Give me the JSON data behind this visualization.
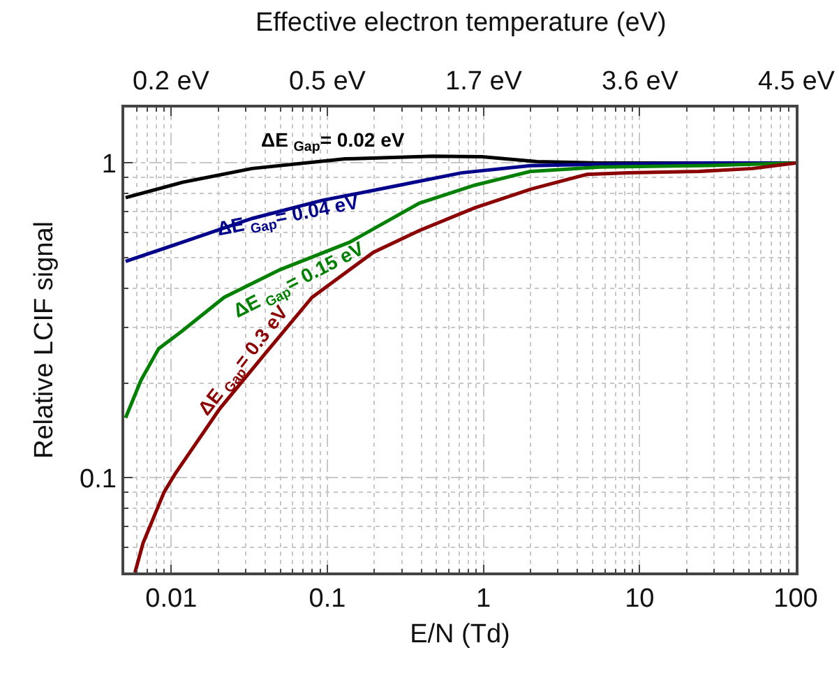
{
  "chart_data": {
    "type": "line",
    "xlabel": "E/N (Td)",
    "ylabel": "Relative LCIF signal",
    "x2label": "Effective electron temperature (eV)",
    "log": "xy",
    "xlim": [
      0.005,
      100
    ],
    "xticks": [
      0.01,
      0.1,
      1,
      10,
      100
    ],
    "ylim": [
      0.05,
      1.5
    ],
    "yticks": [
      0.1,
      1
    ],
    "grid": true,
    "line_style": "solid",
    "marker": "none",
    "series": [
      {
        "color": "#000000",
        "x": [
          0.0051,
          0.0118,
          0.0329,
          0.13,
          0.476,
          0.98,
          2.2,
          5.6,
          24,
          100
        ],
        "values": [
          0.776,
          0.868,
          0.96,
          1.03,
          1.05,
          1.046,
          1.01,
          1.0,
          1.0,
          1.0
        ]
      },
      {
        "color": "#00008b",
        "x": [
          0.0051,
          0.0118,
          0.0329,
          0.092,
          0.258,
          0.72,
          2.0,
          5.6,
          24,
          100
        ],
        "values": [
          0.487,
          0.56,
          0.666,
          0.76,
          0.84,
          0.93,
          0.98,
          0.99,
          1.0,
          1.0
        ]
      },
      {
        "color": "#008000",
        "x": [
          0.0051,
          0.0064,
          0.0083,
          0.0118,
          0.0218,
          0.0497,
          0.139,
          0.388,
          0.88,
          2.0,
          5.6,
          24,
          100
        ],
        "values": [
          0.155,
          0.204,
          0.257,
          0.293,
          0.374,
          0.458,
          0.56,
          0.745,
          0.85,
          0.94,
          0.97,
          0.98,
          1.0
        ]
      },
      {
        "color": "#8b0000",
        "x": [
          0.00586,
          0.0066,
          0.009,
          0.0106,
          0.0205,
          0.0405,
          0.0797,
          0.197,
          0.388,
          0.88,
          2.0,
          4.6,
          8.5,
          24,
          53,
          100
        ],
        "values": [
          0.05,
          0.062,
          0.09,
          0.103,
          0.166,
          0.25,
          0.374,
          0.52,
          0.61,
          0.72,
          0.825,
          0.92,
          0.93,
          0.94,
          0.96,
          1.0
        ]
      }
    ],
    "annotations": [
      "ΔE $_{Gap}$= 0.02 eV",
      "ΔE $_{Gap}$= 0.04 eV",
      "ΔE $_{Gap}$= 0.15 eV",
      "ΔE $_{Gap}$= 0.3 eV",
      "0.2 eV",
      "0.5 eV",
      "1.7 eV",
      "3.6 eV",
      "4.5 eV"
    ]
  }
}
